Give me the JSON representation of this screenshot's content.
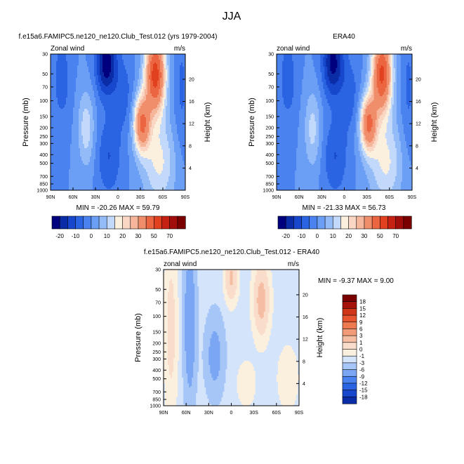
{
  "page": {
    "title": "JJA"
  },
  "colors": {
    "model_obs": [
      "#00007f",
      "#0a2ca7",
      "#1747cc",
      "#2a64e3",
      "#4a82f0",
      "#6b9ef5",
      "#93bbf8",
      "#c2d9fb",
      "#fbf0de",
      "#fad7c4",
      "#f5b69b",
      "#f08e6b",
      "#ea6540",
      "#e1411f",
      "#c52213",
      "#a00d0a",
      "#7a0000"
    ],
    "diff": [
      "#00007f",
      "#0a2ca7",
      "#1747cc",
      "#2a64e3",
      "#4a82f0",
      "#7aa6f4",
      "#a7c6f8",
      "#d4e4fb",
      "#fbf0de",
      "#f9dcc9",
      "#f5bea2",
      "#f29b78",
      "#ee7a52",
      "#e65530",
      "#d03518",
      "#a51209",
      "#7a0000"
    ]
  },
  "chart_data": [
    {
      "type": "heatmap",
      "title": "f.e15a6.FAMIPC5.ne120_ne120.Club_Test.012 (yrs 1979-2004)",
      "left_label": "Zonal wind",
      "right_label": "m/s",
      "xlabel": "",
      "ylabel": "Pressure (mb)",
      "y2label": "Height (km)",
      "x_ticks": [
        "90N",
        "60N",
        "30N",
        "0",
        "30S",
        "60S",
        "90S"
      ],
      "y_ticks": [
        30,
        50,
        70,
        100,
        150,
        200,
        250,
        300,
        400,
        500,
        700,
        850,
        1000
      ],
      "y2_ticks": [
        20,
        16,
        12,
        8,
        4
      ],
      "ylim": [
        1000,
        30
      ],
      "y_scale": "log",
      "stats": "MIN = -20.26  MAX = 59.79",
      "field": "model",
      "colorbar_labels": [
        "-20",
        "-10",
        "0",
        "10",
        "20",
        "30",
        "50",
        "70"
      ],
      "colorbar_orientation": "horizontal"
    },
    {
      "type": "heatmap",
      "title": "ERA40",
      "left_label": "zonal wind",
      "right_label": "m/s",
      "xlabel": "",
      "ylabel": "Pressure (mb)",
      "y2label": "Height (km)",
      "x_ticks": [
        "90N",
        "60N",
        "30N",
        "0",
        "30S",
        "60S",
        "90S"
      ],
      "y_ticks": [
        30,
        50,
        70,
        100,
        150,
        200,
        250,
        300,
        400,
        500,
        700,
        850,
        1000
      ],
      "y2_ticks": [
        20,
        16,
        12,
        8,
        4
      ],
      "ylim": [
        1000,
        30
      ],
      "y_scale": "log",
      "stats": "MIN = -21.33  MAX = 56.73",
      "field": "obs",
      "colorbar_labels": [
        "-20",
        "-10",
        "0",
        "10",
        "20",
        "30",
        "50",
        "70"
      ],
      "colorbar_orientation": "horizontal"
    },
    {
      "type": "heatmap",
      "title": "f.e15a6.FAMIPC5.ne120_ne120.Club_Test.012 - ERA40",
      "left_label": "zonal wind",
      "right_label": "m/s",
      "xlabel": "",
      "ylabel": "Pressure (mb)",
      "y2label": "Height (km)",
      "x_ticks": [
        "90N",
        "60N",
        "30N",
        "0",
        "30S",
        "60S",
        "90S"
      ],
      "y_ticks": [
        30,
        50,
        70,
        100,
        150,
        200,
        250,
        300,
        400,
        500,
        700,
        850,
        1000
      ],
      "y2_ticks": [
        20,
        16,
        12,
        8,
        4
      ],
      "ylim": [
        1000,
        30
      ],
      "y_scale": "log",
      "stats": "MIN =  -9.37  MAX =   9.00",
      "field": "diff",
      "colorbar_labels": [
        "18",
        "15",
        "12",
        "9",
        "6",
        "3",
        "1",
        "0",
        "-1",
        "-3",
        "-6",
        "-9",
        "-12",
        "-15",
        "-18"
      ],
      "colorbar_orientation": "vertical"
    }
  ]
}
